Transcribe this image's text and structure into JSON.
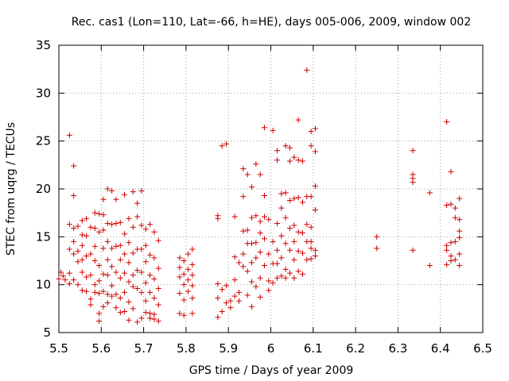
{
  "chart_data": {
    "type": "scatter",
    "title": "Rec. cas1 (Lon=110, Lat=-66, h=HE), days 005-006, 2009, window 002",
    "xlabel": "GPS time / Days of year 2009",
    "ylabel": "STEC from uqrg / TECUs",
    "xlim": [
      5.5,
      6.5
    ],
    "ylim": [
      5,
      35
    ],
    "xticks": [
      5.5,
      5.6,
      5.7,
      5.8,
      5.9,
      6.0,
      6.1,
      6.2,
      6.3,
      6.4,
      6.5
    ],
    "yticks": [
      5,
      10,
      15,
      20,
      25,
      30,
      35
    ],
    "xtick_labels": [
      "5.5",
      "5.6",
      "5.7",
      "5.8",
      "5.9",
      "6",
      "6.1",
      "6.2",
      "6.3",
      "6.4",
      "6.5"
    ],
    "ytick_labels": [
      "5",
      "10",
      "15",
      "20",
      "25",
      "30",
      "35"
    ],
    "grid": true,
    "marker": "+",
    "color": "#d00000",
    "series": [
      {
        "name": "STEC",
        "points": [
          [
            5.5,
            10.6
          ],
          [
            5.505,
            11.3
          ],
          [
            5.51,
            10.9
          ],
          [
            5.515,
            10.5
          ],
          [
            5.525,
            25.6
          ],
          [
            5.525,
            16.3
          ],
          [
            5.525,
            13.7
          ],
          [
            5.525,
            11.2
          ],
          [
            5.525,
            10.1
          ],
          [
            5.535,
            22.4
          ],
          [
            5.535,
            19.3
          ],
          [
            5.535,
            15.9
          ],
          [
            5.535,
            14.5
          ],
          [
            5.535,
            13.2
          ],
          [
            5.535,
            10.5
          ],
          [
            5.545,
            16.1
          ],
          [
            5.545,
            13.5
          ],
          [
            5.545,
            12.4
          ],
          [
            5.545,
            10.0
          ],
          [
            5.555,
            16.7
          ],
          [
            5.555,
            15.2
          ],
          [
            5.555,
            14.1
          ],
          [
            5.555,
            12.6
          ],
          [
            5.555,
            11.3
          ],
          [
            5.555,
            9.4
          ],
          [
            5.565,
            16.9
          ],
          [
            5.565,
            15.1
          ],
          [
            5.565,
            13.0
          ],
          [
            5.565,
            10.8
          ],
          [
            5.565,
            9.3
          ],
          [
            5.575,
            16.0
          ],
          [
            5.575,
            13.2
          ],
          [
            5.575,
            11.0
          ],
          [
            5.575,
            8.5
          ],
          [
            5.575,
            7.9
          ],
          [
            5.585,
            17.5
          ],
          [
            5.585,
            15.9
          ],
          [
            5.585,
            14.0
          ],
          [
            5.585,
            12.5
          ],
          [
            5.585,
            10.0
          ],
          [
            5.585,
            9.2
          ],
          [
            5.595,
            17.4
          ],
          [
            5.595,
            15.5
          ],
          [
            5.595,
            12.0
          ],
          [
            5.595,
            10.4
          ],
          [
            5.595,
            9.1
          ],
          [
            5.595,
            7.0
          ],
          [
            5.595,
            6.2
          ],
          [
            5.605,
            18.9
          ],
          [
            5.605,
            17.3
          ],
          [
            5.605,
            15.7
          ],
          [
            5.605,
            13.8
          ],
          [
            5.605,
            11.1
          ],
          [
            5.605,
            9.3
          ],
          [
            5.605,
            7.7
          ],
          [
            5.615,
            20.0
          ],
          [
            5.615,
            16.4
          ],
          [
            5.615,
            14.5
          ],
          [
            5.615,
            12.6
          ],
          [
            5.615,
            11.0
          ],
          [
            5.615,
            9.0
          ],
          [
            5.615,
            8.1
          ],
          [
            5.625,
            19.8
          ],
          [
            5.625,
            16.3
          ],
          [
            5.625,
            13.8
          ],
          [
            5.625,
            11.9
          ],
          [
            5.625,
            9.9
          ],
          [
            5.625,
            8.8
          ],
          [
            5.635,
            18.9
          ],
          [
            5.635,
            16.4
          ],
          [
            5.635,
            14.0
          ],
          [
            5.635,
            11.3
          ],
          [
            5.635,
            9.0
          ],
          [
            5.635,
            7.6
          ],
          [
            5.645,
            16.5
          ],
          [
            5.645,
            14.1
          ],
          [
            5.645,
            12.6
          ],
          [
            5.645,
            10.7
          ],
          [
            5.645,
            8.6
          ],
          [
            5.645,
            7.1
          ],
          [
            5.655,
            19.4
          ],
          [
            5.655,
            15.3
          ],
          [
            5.655,
            13.2
          ],
          [
            5.655,
            11.2
          ],
          [
            5.655,
            9.2
          ],
          [
            5.655,
            7.2
          ],
          [
            5.665,
            16.9
          ],
          [
            5.665,
            14.4
          ],
          [
            5.665,
            12.3
          ],
          [
            5.665,
            10.3
          ],
          [
            5.665,
            8.2
          ],
          [
            5.665,
            6.3
          ],
          [
            5.675,
            19.7
          ],
          [
            5.675,
            16.0
          ],
          [
            5.675,
            13.3
          ],
          [
            5.675,
            11.0
          ],
          [
            5.675,
            9.8
          ],
          [
            5.675,
            7.5
          ],
          [
            5.685,
            18.5
          ],
          [
            5.685,
            17.1
          ],
          [
            5.685,
            13.7
          ],
          [
            5.685,
            11.5
          ],
          [
            5.685,
            9.6
          ],
          [
            5.685,
            6.1
          ],
          [
            5.695,
            19.8
          ],
          [
            5.695,
            16.2
          ],
          [
            5.695,
            13.7
          ],
          [
            5.695,
            11.3
          ],
          [
            5.695,
            9.2
          ],
          [
            5.695,
            6.5
          ],
          [
            5.705,
            15.8
          ],
          [
            5.705,
            14.1
          ],
          [
            5.705,
            12.4
          ],
          [
            5.705,
            10.2
          ],
          [
            5.705,
            8.3
          ],
          [
            5.705,
            7.1
          ],
          [
            5.715,
            16.3
          ],
          [
            5.715,
            13.1
          ],
          [
            5.715,
            11.0
          ],
          [
            5.715,
            9.2
          ],
          [
            5.715,
            7.0
          ],
          [
            5.715,
            6.5
          ],
          [
            5.725,
            15.5
          ],
          [
            5.725,
            12.8
          ],
          [
            5.725,
            10.6
          ],
          [
            5.725,
            8.6
          ],
          [
            5.725,
            6.9
          ],
          [
            5.725,
            6.4
          ],
          [
            5.735,
            14.6
          ],
          [
            5.735,
            11.7
          ],
          [
            5.735,
            9.6
          ],
          [
            5.735,
            7.9
          ],
          [
            5.735,
            6.2
          ],
          [
            5.785,
            12.8
          ],
          [
            5.785,
            11.8
          ],
          [
            5.785,
            10.8
          ],
          [
            5.785,
            9.1
          ],
          [
            5.785,
            7.0
          ],
          [
            5.795,
            12.5
          ],
          [
            5.795,
            11.1
          ],
          [
            5.795,
            10.0
          ],
          [
            5.795,
            8.4
          ],
          [
            5.795,
            6.8
          ],
          [
            5.805,
            13.2
          ],
          [
            5.805,
            11.6
          ],
          [
            5.805,
            10.5
          ],
          [
            5.805,
            9.3
          ],
          [
            5.815,
            13.7
          ],
          [
            5.815,
            12.1
          ],
          [
            5.815,
            11.0
          ],
          [
            5.815,
            9.9
          ],
          [
            5.815,
            8.6
          ],
          [
            5.815,
            7.0
          ],
          [
            5.875,
            17.2
          ],
          [
            5.875,
            16.9
          ],
          [
            5.875,
            10.1
          ],
          [
            5.875,
            8.6
          ],
          [
            5.875,
            6.6
          ],
          [
            5.885,
            24.5
          ],
          [
            5.885,
            9.5
          ],
          [
            5.885,
            7.2
          ],
          [
            5.895,
            24.7
          ],
          [
            5.895,
            9.9
          ],
          [
            5.895,
            8.1
          ],
          [
            5.905,
            8.3
          ],
          [
            5.905,
            7.6
          ],
          [
            5.915,
            17.1
          ],
          [
            5.915,
            12.9
          ],
          [
            5.915,
            10.5
          ],
          [
            5.915,
            8.8
          ],
          [
            5.925,
            12.3
          ],
          [
            5.925,
            9.2
          ],
          [
            5.925,
            8.3
          ],
          [
            5.935,
            22.1
          ],
          [
            5.935,
            19.2
          ],
          [
            5.935,
            15.6
          ],
          [
            5.935,
            13.2
          ],
          [
            5.935,
            11.9
          ],
          [
            5.945,
            21.5
          ],
          [
            5.945,
            15.7
          ],
          [
            5.945,
            14.3
          ],
          [
            5.945,
            11.4
          ],
          [
            5.945,
            8.9
          ],
          [
            5.955,
            20.2
          ],
          [
            5.955,
            17.0
          ],
          [
            5.955,
            14.3
          ],
          [
            5.955,
            12.3
          ],
          [
            5.955,
            10.3
          ],
          [
            5.955,
            7.7
          ],
          [
            5.965,
            22.6
          ],
          [
            5.965,
            17.2
          ],
          [
            5.965,
            14.4
          ],
          [
            5.965,
            12.8
          ],
          [
            5.965,
            9.8
          ],
          [
            5.975,
            21.5
          ],
          [
            5.975,
            16.6
          ],
          [
            5.975,
            15.4
          ],
          [
            5.975,
            13.4
          ],
          [
            5.975,
            10.7
          ],
          [
            5.975,
            8.7
          ],
          [
            5.985,
            26.4
          ],
          [
            5.985,
            19.3
          ],
          [
            5.985,
            17.1
          ],
          [
            5.985,
            14.8
          ],
          [
            5.985,
            12.0
          ],
          [
            5.995,
            16.8
          ],
          [
            5.995,
            13.2
          ],
          [
            5.995,
            10.4
          ],
          [
            5.995,
            9.4
          ],
          [
            6.005,
            26.1
          ],
          [
            6.005,
            14.5
          ],
          [
            6.005,
            12.2
          ],
          [
            6.005,
            10.2
          ],
          [
            6.015,
            24.0
          ],
          [
            6.015,
            23.0
          ],
          [
            6.015,
            16.4
          ],
          [
            6.015,
            13.6
          ],
          [
            6.015,
            12.2
          ],
          [
            6.015,
            10.7
          ],
          [
            6.025,
            19.5
          ],
          [
            6.025,
            18.0
          ],
          [
            6.025,
            15.1
          ],
          [
            6.025,
            12.8
          ],
          [
            6.025,
            10.9
          ],
          [
            6.035,
            24.5
          ],
          [
            6.035,
            19.6
          ],
          [
            6.035,
            17.0
          ],
          [
            6.035,
            14.3
          ],
          [
            6.035,
            11.6
          ],
          [
            6.035,
            10.7
          ],
          [
            6.045,
            24.3
          ],
          [
            6.045,
            22.9
          ],
          [
            6.045,
            18.8
          ],
          [
            6.045,
            15.9
          ],
          [
            6.045,
            13.6
          ],
          [
            6.045,
            11.2
          ],
          [
            6.055,
            23.3
          ],
          [
            6.055,
            19.0
          ],
          [
            6.055,
            16.2
          ],
          [
            6.055,
            14.5
          ],
          [
            6.055,
            12.6
          ],
          [
            6.055,
            10.7
          ],
          [
            6.065,
            27.2
          ],
          [
            6.065,
            23.0
          ],
          [
            6.065,
            19.1
          ],
          [
            6.065,
            15.5
          ],
          [
            6.065,
            13.5
          ],
          [
            6.065,
            11.4
          ],
          [
            6.075,
            22.9
          ],
          [
            6.075,
            18.6
          ],
          [
            6.075,
            15.4
          ],
          [
            6.075,
            13.3
          ],
          [
            6.075,
            11.1
          ],
          [
            6.085,
            32.4
          ],
          [
            6.085,
            19.2
          ],
          [
            6.085,
            16.3
          ],
          [
            6.085,
            14.5
          ],
          [
            6.085,
            12.6
          ],
          [
            6.095,
            26.0
          ],
          [
            6.095,
            24.5
          ],
          [
            6.095,
            19.2
          ],
          [
            6.095,
            16.0
          ],
          [
            6.095,
            14.5
          ],
          [
            6.095,
            13.8
          ],
          [
            6.095,
            12.7
          ],
          [
            6.105,
            26.3
          ],
          [
            6.105,
            23.9
          ],
          [
            6.105,
            20.3
          ],
          [
            6.105,
            17.8
          ],
          [
            6.105,
            13.6
          ],
          [
            6.105,
            13.0
          ],
          [
            6.25,
            15.0
          ],
          [
            6.25,
            13.8
          ],
          [
            6.335,
            24.0
          ],
          [
            6.335,
            21.5
          ],
          [
            6.335,
            21.1
          ],
          [
            6.335,
            20.7
          ],
          [
            6.335,
            13.6
          ],
          [
            6.375,
            19.6
          ],
          [
            6.375,
            12.0
          ],
          [
            6.415,
            27.0
          ],
          [
            6.415,
            18.3
          ],
          [
            6.415,
            14.1
          ],
          [
            6.415,
            13.6
          ],
          [
            6.415,
            12.1
          ],
          [
            6.425,
            21.8
          ],
          [
            6.425,
            18.4
          ],
          [
            6.425,
            14.4
          ],
          [
            6.425,
            13.0
          ],
          [
            6.425,
            12.5
          ],
          [
            6.435,
            18.0
          ],
          [
            6.435,
            17.0
          ],
          [
            6.435,
            14.5
          ],
          [
            6.435,
            12.6
          ],
          [
            6.445,
            19.0
          ],
          [
            6.445,
            16.8
          ],
          [
            6.445,
            15.6
          ],
          [
            6.445,
            14.9
          ],
          [
            6.445,
            13.2
          ],
          [
            6.445,
            12.0
          ]
        ]
      }
    ]
  }
}
